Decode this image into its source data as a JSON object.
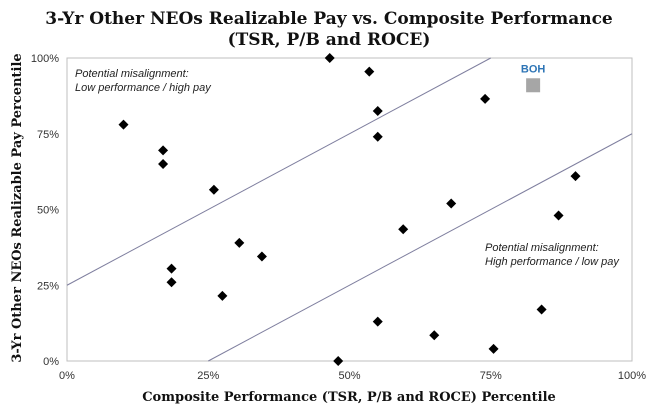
{
  "chart_data": {
    "type": "scatter",
    "title_line1": "3-Yr Other NEOs Realizable Pay vs. Composite Performance",
    "title_line2": "(TSR, P/B and ROCE)",
    "xlabel": "Composite Performance (TSR, P/B and ROCE) Percentile",
    "ylabel": "3-Yr Other NEOs  Realizable Pay Percentile",
    "xlim": [
      0,
      100
    ],
    "ylim": [
      0,
      100
    ],
    "x_ticks": [
      "0%",
      "25%",
      "50%",
      "75%",
      "100%"
    ],
    "y_ticks": [
      "0%",
      "25%",
      "50%",
      "75%",
      "100%"
    ],
    "grid": false,
    "points": [
      {
        "x": 10,
        "y": 78
      },
      {
        "x": 17,
        "y": 69.5
      },
      {
        "x": 17,
        "y": 65
      },
      {
        "x": 18.5,
        "y": 30.5
      },
      {
        "x": 18.5,
        "y": 26
      },
      {
        "x": 26,
        "y": 56.5
      },
      {
        "x": 27.5,
        "y": 21.5
      },
      {
        "x": 30.5,
        "y": 39
      },
      {
        "x": 34.5,
        "y": 34.5
      },
      {
        "x": 46.5,
        "y": 100
      },
      {
        "x": 48,
        "y": 0
      },
      {
        "x": 53.5,
        "y": 95.5
      },
      {
        "x": 55,
        "y": 82.5
      },
      {
        "x": 55,
        "y": 74
      },
      {
        "x": 55,
        "y": 13
      },
      {
        "x": 59.5,
        "y": 43.5
      },
      {
        "x": 65,
        "y": 8.5
      },
      {
        "x": 68,
        "y": 52
      },
      {
        "x": 74,
        "y": 86.5
      },
      {
        "x": 75.5,
        "y": 4
      },
      {
        "x": 84,
        "y": 17
      },
      {
        "x": 87,
        "y": 48
      },
      {
        "x": 90,
        "y": 61
      }
    ],
    "highlight": {
      "label": "BOH",
      "x": 82.5,
      "y": 91,
      "color": "#a6a6a6",
      "label_color": "#2e75b6"
    },
    "point_color": "#000000",
    "bands": [
      {
        "x1": 0,
        "y1": 25,
        "x2": 75,
        "y2": 100
      },
      {
        "x1": 25,
        "y1": 0,
        "x2": 100,
        "y2": 75
      }
    ],
    "band_color": "#7f7f9f",
    "annotations": {
      "upper_line1": "Potential misalignment:",
      "upper_line2": "Low performance / high pay",
      "lower_line1": "Potential misalignment:",
      "lower_line2": "High performance / low pay"
    }
  }
}
